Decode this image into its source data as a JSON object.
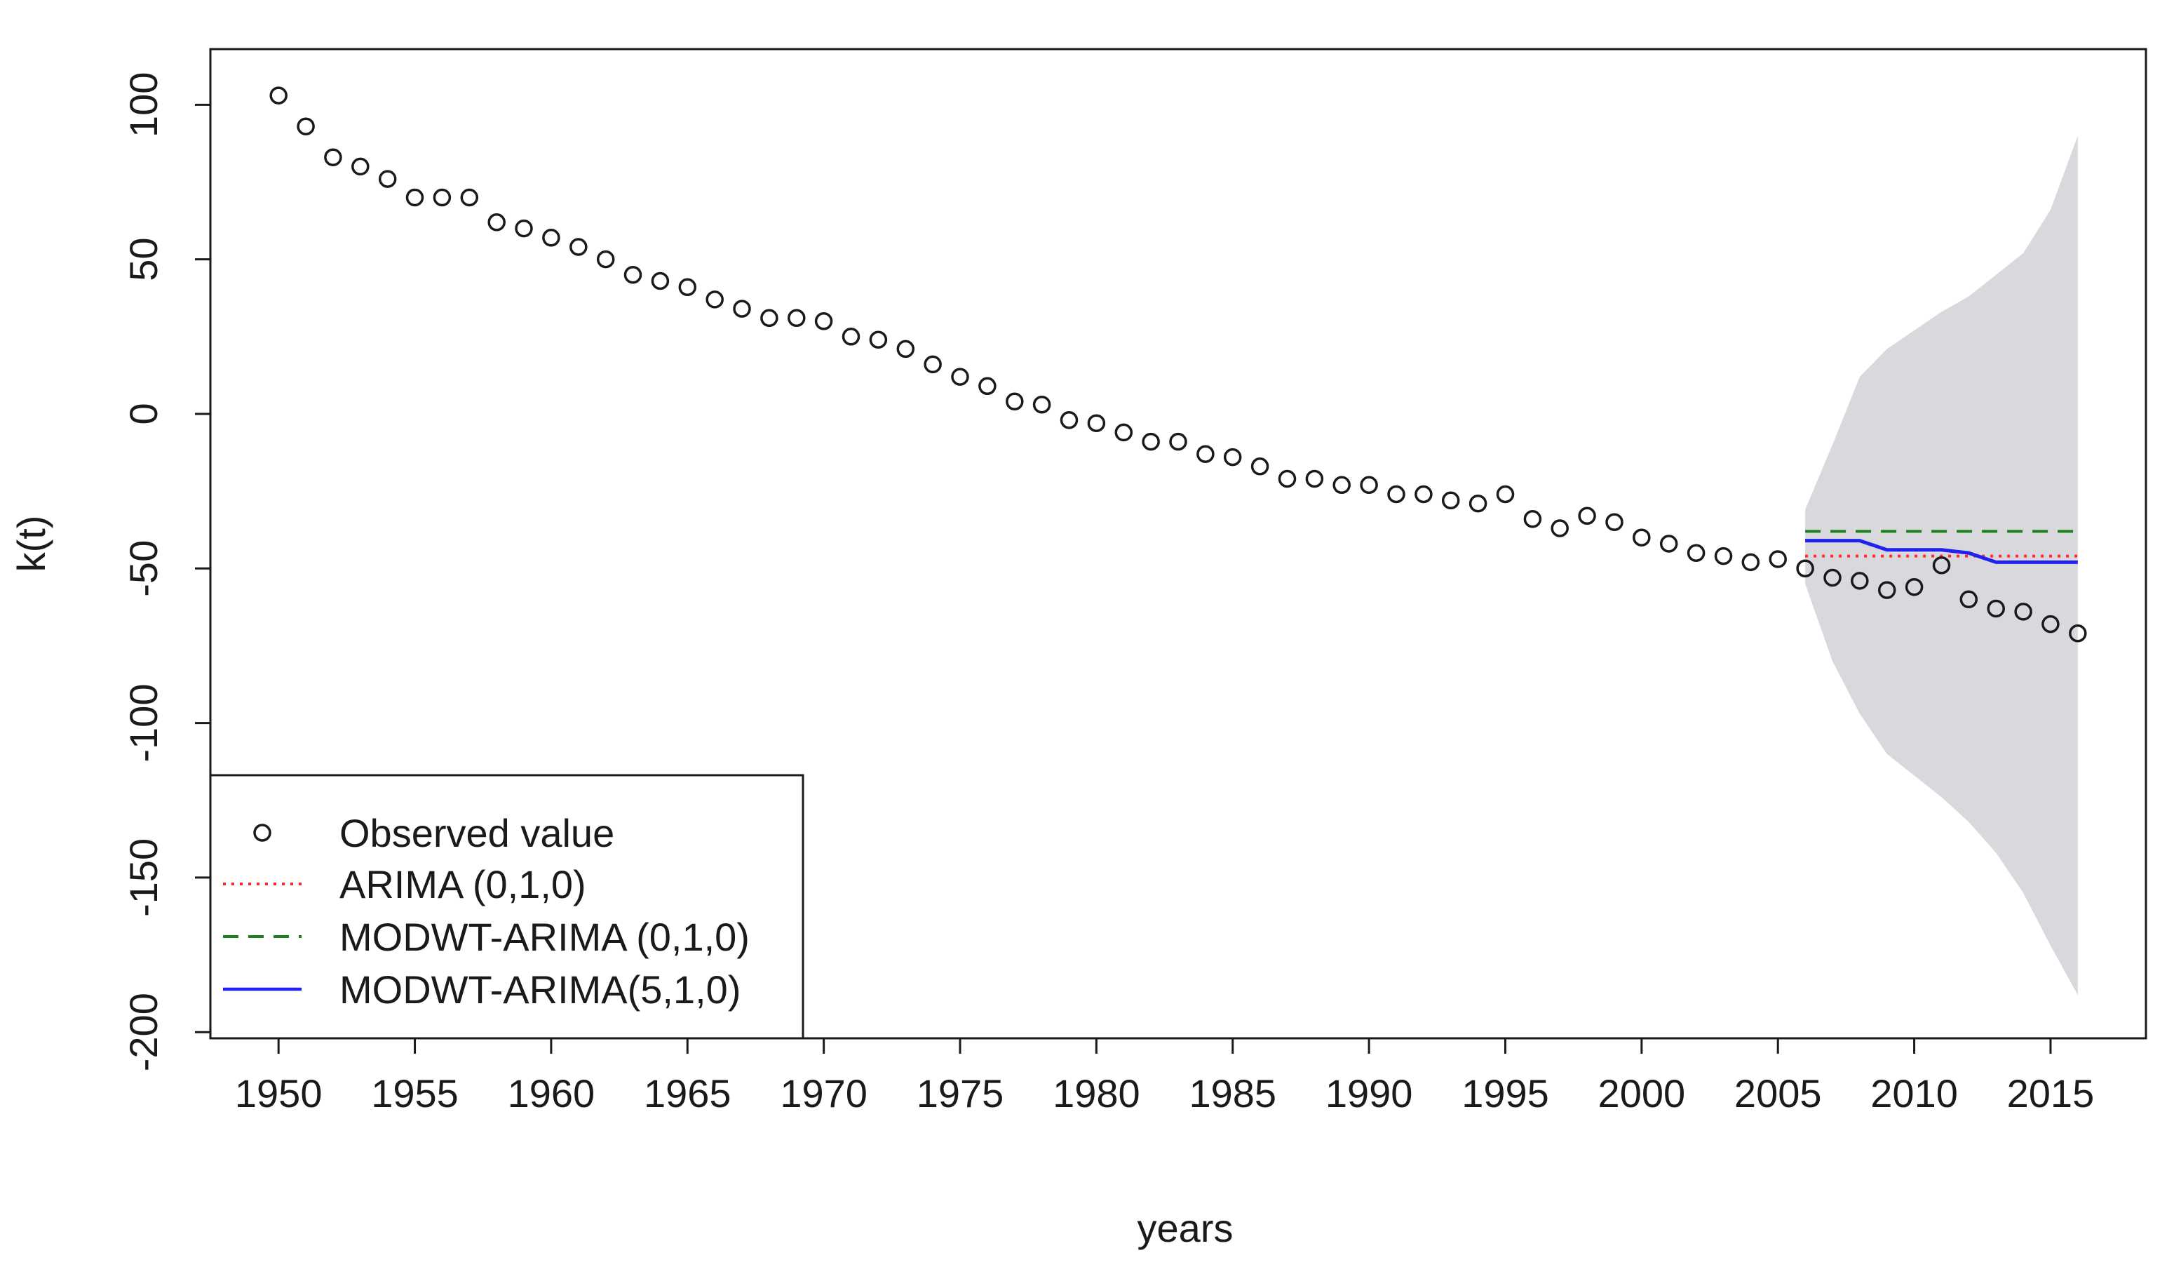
{
  "chart_data": {
    "type": "scatter",
    "title": "",
    "xlabel": "years",
    "ylabel": "k(t)",
    "xlim": [
      1947.5,
      2018.5
    ],
    "ylim": [
      -202,
      118
    ],
    "x_ticks": [
      1950,
      1955,
      1960,
      1965,
      1970,
      1975,
      1980,
      1985,
      1990,
      1995,
      2000,
      2005,
      2010,
      2015
    ],
    "y_ticks": [
      100,
      50,
      0,
      -50,
      -100,
      -150,
      -200
    ],
    "x_tick_labels": [
      "1950",
      "1955",
      "1960",
      "1965",
      "1970",
      "1975",
      "1980",
      "1985",
      "1990",
      "1995",
      "2000",
      "2005",
      "2010",
      "2015"
    ],
    "y_tick_labels": [
      "100",
      "50",
      "0",
      "-50",
      "-100",
      "-150",
      "-200"
    ],
    "grid": false,
    "legend_position": "bottom-left",
    "observed": {
      "name": "Observed value",
      "x": [
        1950,
        1951,
        1952,
        1953,
        1954,
        1955,
        1956,
        1957,
        1958,
        1959,
        1960,
        1961,
        1962,
        1963,
        1964,
        1965,
        1966,
        1967,
        1968,
        1969,
        1970,
        1971,
        1972,
        1973,
        1974,
        1975,
        1976,
        1977,
        1978,
        1979,
        1980,
        1981,
        1982,
        1983,
        1984,
        1985,
        1986,
        1987,
        1988,
        1989,
        1990,
        1991,
        1992,
        1993,
        1994,
        1995,
        1996,
        1997,
        1998,
        1999,
        2000,
        2001,
        2002,
        2003,
        2004,
        2005,
        2006,
        2007,
        2008,
        2009,
        2010,
        2011,
        2012,
        2013,
        2014,
        2015,
        2016
      ],
      "y": [
        103,
        93,
        83,
        80,
        76,
        70,
        70,
        70,
        62,
        60,
        57,
        54,
        50,
        45,
        43,
        41,
        37,
        34,
        31,
        31,
        30,
        25,
        24,
        21,
        16,
        12,
        9,
        4,
        3,
        -2,
        -3,
        -6,
        -9,
        -9,
        -13,
        -14,
        -17,
        -21,
        -21,
        -23,
        -23,
        -26,
        -26,
        -28,
        -29,
        -26,
        -34,
        -37,
        -33,
        -35,
        -40,
        -42,
        -45,
        -46,
        -48,
        -47,
        -50,
        -53,
        -54,
        -57,
        -56,
        -49,
        -60,
        -63,
        -64,
        -68,
        -71
      ]
    },
    "series": [
      {
        "name": "ARIMA (0,1,0)",
        "color": "#ff2a2a",
        "style": "dotted",
        "x": [
          2006,
          2016
        ],
        "y": [
          -46,
          -46
        ]
      },
      {
        "name": "MODWT-ARIMA (0,1,0)",
        "color": "#1f7f1f",
        "style": "dashed",
        "x": [
          2006,
          2016
        ],
        "y": [
          -38,
          -38
        ]
      },
      {
        "name": "MODWT-ARIMA(5,1,0)",
        "color": "#2222ee",
        "style": "solid",
        "x": [
          2006,
          2007,
          2008,
          2009,
          2010,
          2011,
          2012,
          2013,
          2014,
          2015,
          2016
        ],
        "y": [
          -41,
          -41,
          -41,
          -44,
          -44,
          -44,
          -45,
          -48,
          -48,
          -48,
          -48
        ]
      }
    ],
    "prediction_band": {
      "color": "#d9d9dd",
      "x": [
        2006,
        2007,
        2008,
        2009,
        2010,
        2011,
        2012,
        2013,
        2014,
        2015,
        2016
      ],
      "upper": [
        -31,
        -10,
        12,
        21,
        27,
        33,
        38,
        45,
        52,
        66,
        90
      ],
      "lower": [
        -55,
        -80,
        -97,
        -110,
        -117,
        -124,
        -132,
        -142,
        -155,
        -172,
        -188
      ]
    },
    "legend": [
      "Observed value",
      "ARIMA (0,1,0)",
      "MODWT-ARIMA (0,1,0)",
      "MODWT-ARIMA(5,1,0)"
    ]
  }
}
